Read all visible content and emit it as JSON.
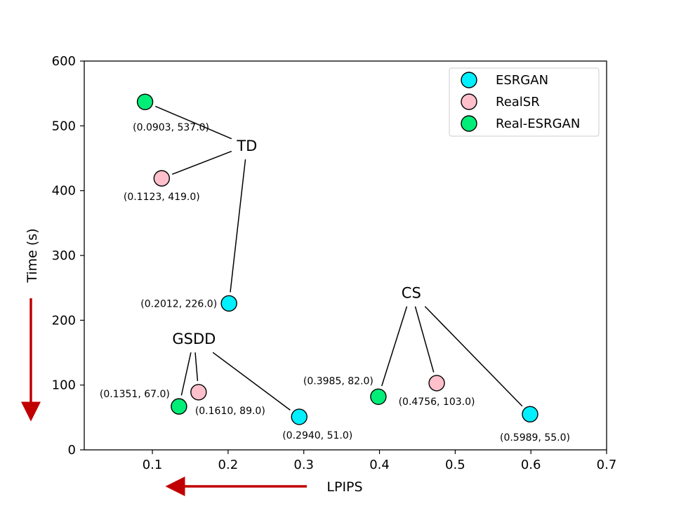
{
  "chart_data": {
    "type": "scatter",
    "title": "",
    "xlabel": "LPIPS",
    "ylabel": "Time (s)",
    "xlim": [
      0.01,
      0.7
    ],
    "ylim": [
      0,
      600
    ],
    "xticks": [
      "0.1",
      "0.2",
      "0.3",
      "0.4",
      "0.5",
      "0.6",
      "0.7"
    ],
    "yticks": [
      "0",
      "100",
      "200",
      "300",
      "400",
      "500",
      "600"
    ],
    "grid": false,
    "legend_position": "top-right",
    "series": [
      {
        "name": "ESRGAN",
        "color": "#00f0ff",
        "points": [
          {
            "x": 0.2012,
            "y": 226.0,
            "label": "(0.2012, 226.0)"
          },
          {
            "x": 0.294,
            "y": 51.0,
            "label": "(0.2940, 51.0)"
          },
          {
            "x": 0.5989,
            "y": 55.0,
            "label": "(0.5989, 55.0)"
          }
        ]
      },
      {
        "name": "RealSR",
        "color": "#ffc0cb",
        "points": [
          {
            "x": 0.1123,
            "y": 419.0,
            "label": "(0.1123, 419.0)"
          },
          {
            "x": 0.161,
            "y": 89.0,
            "label": "(0.1610, 89.0)"
          },
          {
            "x": 0.4756,
            "y": 103.0,
            "label": "(0.4756, 103.0)"
          }
        ]
      },
      {
        "name": "Real-ESRGAN",
        "color": "#00ee77",
        "points": [
          {
            "x": 0.0903,
            "y": 537.0,
            "label": "(0.0903, 537.0)"
          },
          {
            "x": 0.1351,
            "y": 67.0,
            "label": "(0.1351, 67.0)"
          },
          {
            "x": 0.3985,
            "y": 82.0,
            "label": "(0.3985, 82.0)"
          }
        ]
      }
    ],
    "groups": [
      {
        "label": "TD",
        "x": 0.225,
        "y": 470,
        "color": "#000000",
        "members": [
          [
            2,
            0
          ],
          [
            1,
            0
          ],
          [
            0,
            0
          ]
        ]
      },
      {
        "label": "GSDD",
        "x": 0.155,
        "y": 172,
        "color": "#c00000",
        "members": [
          [
            2,
            1
          ],
          [
            1,
            1
          ],
          [
            0,
            1
          ]
        ]
      },
      {
        "label": "CS",
        "x": 0.442,
        "y": 243,
        "color": "#000000",
        "members": [
          [
            2,
            2
          ],
          [
            1,
            2
          ],
          [
            0,
            2
          ]
        ]
      }
    ],
    "arrow_color": "#c00000"
  }
}
